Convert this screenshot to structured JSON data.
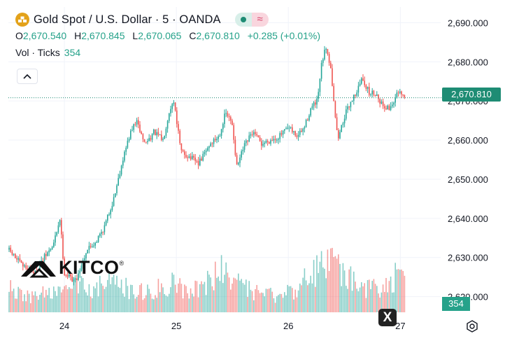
{
  "symbol": {
    "title": "Gold Spot / U.S. Dollar · 5 · OANDA",
    "icon": "gold-bars-icon"
  },
  "ohlc": {
    "o_label": "O",
    "o_value": "2,670.540",
    "h_label": "H",
    "h_value": "2,670.845",
    "l_label": "L",
    "l_value": "2,670.065",
    "c_label": "C",
    "c_value": "2,670.810",
    "change": "+0.285 (+0.01%)"
  },
  "volume": {
    "label": "Vol · Ticks",
    "value": "354"
  },
  "watermark": {
    "text": "KITCO",
    "mark": "®"
  },
  "close_button": "X",
  "colors": {
    "up": "#26a69a",
    "down": "#ef5350",
    "accent": "#1e8c74"
  },
  "chart_data": {
    "type": "candlestick",
    "price_axis": {
      "ticks": [
        2690,
        2680,
        2670,
        2660,
        2650,
        2640,
        2630,
        2620
      ],
      "tick_labels": [
        "2,690.000",
        "2,680.000",
        "2,670.000",
        "2,660.000",
        "2,650.000",
        "2,640.000",
        "2,630.000",
        "2,620.000"
      ],
      "range": [
        2616,
        2694
      ]
    },
    "time_axis": {
      "ticks": [
        24,
        25,
        26,
        27
      ],
      "tick_labels": [
        "24",
        "25",
        "26",
        "27"
      ],
      "range": [
        23.5,
        27.36
      ]
    },
    "last_price": 2670.81,
    "last_price_label": "2,670.810",
    "last_volume_label": "354",
    "path": [
      [
        23.5,
        2632.0
      ],
      [
        23.62,
        2628.0
      ],
      [
        23.74,
        2626.0
      ],
      [
        23.82,
        2630.0
      ],
      [
        23.9,
        2633.0
      ],
      [
        23.96,
        2640.0
      ],
      [
        24.0,
        2626.0
      ],
      [
        24.1,
        2624.0
      ],
      [
        24.2,
        2632.0
      ],
      [
        24.28,
        2634.0
      ],
      [
        24.36,
        2638.0
      ],
      [
        24.44,
        2645.0
      ],
      [
        24.52,
        2655.0
      ],
      [
        24.58,
        2661.0
      ],
      [
        24.64,
        2665.0
      ],
      [
        24.72,
        2659.0
      ],
      [
        24.8,
        2662.0
      ],
      [
        24.88,
        2660.0
      ],
      [
        24.94,
        2668.0
      ],
      [
        24.98,
        2670.0
      ],
      [
        25.04,
        2657.0
      ],
      [
        25.1,
        2656.0
      ],
      [
        25.2,
        2654.0
      ],
      [
        25.3,
        2659.0
      ],
      [
        25.38,
        2661.0
      ],
      [
        25.44,
        2667.0
      ],
      [
        25.5,
        2664.0
      ],
      [
        25.54,
        2653.0
      ],
      [
        25.6,
        2658.0
      ],
      [
        25.68,
        2662.0
      ],
      [
        25.76,
        2659.0
      ],
      [
        25.84,
        2660.0
      ],
      [
        25.92,
        2661.0
      ],
      [
        26.0,
        2663.0
      ],
      [
        26.08,
        2661.0
      ],
      [
        26.14,
        2663.0
      ],
      [
        26.2,
        2668.0
      ],
      [
        26.26,
        2670.0
      ],
      [
        26.3,
        2680.0
      ],
      [
        26.34,
        2684.0
      ],
      [
        26.38,
        2678.0
      ],
      [
        26.44,
        2660.0
      ],
      [
        26.5,
        2666.0
      ],
      [
        26.56,
        2670.0
      ],
      [
        26.62,
        2673.0
      ],
      [
        26.66,
        2676.0
      ],
      [
        26.72,
        2672.0
      ],
      [
        26.78,
        2672.0
      ],
      [
        26.84,
        2669.0
      ],
      [
        26.9,
        2668.0
      ],
      [
        26.96,
        2671.0
      ],
      [
        26.98,
        2672.0
      ],
      [
        27.04,
        2670.8
      ]
    ],
    "volume_profile": [
      [
        23.5,
        0.35
      ],
      [
        23.7,
        0.22
      ],
      [
        23.85,
        0.3
      ],
      [
        23.98,
        0.26
      ],
      [
        24.1,
        0.42
      ],
      [
        24.25,
        0.38
      ],
      [
        24.4,
        0.45
      ],
      [
        24.55,
        0.36
      ],
      [
        24.7,
        0.3
      ],
      [
        24.85,
        0.38
      ],
      [
        24.98,
        0.44
      ],
      [
        25.1,
        0.35
      ],
      [
        25.25,
        0.4
      ],
      [
        25.4,
        0.62
      ],
      [
        25.5,
        0.58
      ],
      [
        25.6,
        0.35
      ],
      [
        25.75,
        0.28
      ],
      [
        25.9,
        0.24
      ],
      [
        26.05,
        0.35
      ],
      [
        26.2,
        0.55
      ],
      [
        26.35,
        0.8
      ],
      [
        26.45,
        0.65
      ],
      [
        26.55,
        0.48
      ],
      [
        26.7,
        0.38
      ],
      [
        26.85,
        0.34
      ],
      [
        26.95,
        0.52
      ],
      [
        27.04,
        0.42
      ]
    ]
  }
}
